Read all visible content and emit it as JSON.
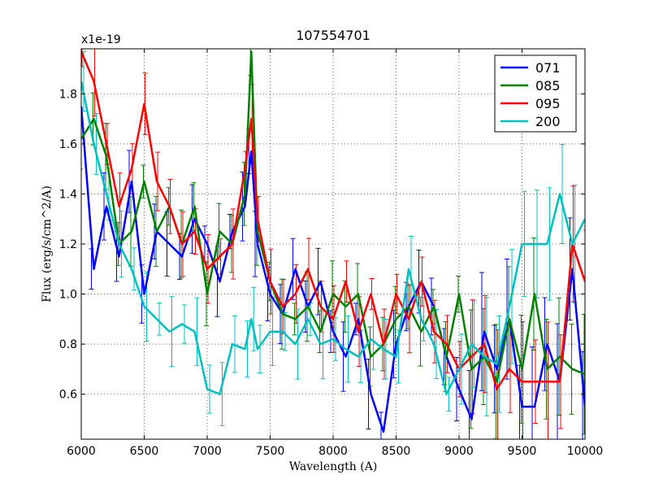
{
  "chart_data": {
    "type": "line",
    "title": "107554701",
    "xlabel": "Wavelength (A)",
    "ylabel": "Flux (erg/s/cm^2/A)",
    "y_multiplier_label": "x1e-19",
    "xlim": [
      6000,
      10000
    ],
    "ylim": [
      0.42,
      1.98
    ],
    "x_ticks": [
      6000,
      6500,
      7000,
      7500,
      8000,
      8500,
      9000,
      9500,
      10000
    ],
    "y_ticks": [
      0.6,
      0.8,
      1.0,
      1.2,
      1.4,
      1.6,
      1.8
    ],
    "x_tick_labels": [
      "6000",
      "6500",
      "7000",
      "7500",
      "8000",
      "8500",
      "9000",
      "9500",
      "10000"
    ],
    "y_tick_labels": [
      "0.6",
      "0.8",
      "1.0",
      "1.2",
      "1.4",
      "1.6",
      "1.8"
    ],
    "grid": true,
    "legend_position": "top-right",
    "series": [
      {
        "name": "071",
        "color": "#0000ff",
        "x": [
          6000,
          6100,
          6200,
          6300,
          6400,
          6500,
          6600,
          6700,
          6800,
          6900,
          7000,
          7100,
          7200,
          7300,
          7350,
          7400,
          7500,
          7600,
          7700,
          7800,
          7900,
          8000,
          8100,
          8200,
          8300,
          8400,
          8500,
          8600,
          8700,
          8800,
          8900,
          9000,
          9100,
          9200,
          9300,
          9400,
          9500,
          9600,
          9700,
          9800,
          9900,
          10000
        ],
        "values": [
          1.75,
          1.1,
          1.35,
          1.15,
          1.45,
          1.0,
          1.25,
          1.2,
          1.15,
          1.3,
          1.2,
          1.05,
          1.25,
          1.35,
          1.57,
          1.2,
          1.0,
          0.92,
          1.1,
          0.95,
          1.05,
          0.85,
          0.75,
          0.9,
          0.6,
          0.45,
          0.8,
          0.95,
          1.05,
          0.95,
          0.75,
          0.62,
          0.5,
          0.85,
          0.7,
          0.9,
          0.55,
          0.55,
          0.8,
          0.65,
          1.1,
          0.55
        ]
      },
      {
        "name": "085",
        "color": "#008000",
        "x": [
          6000,
          6100,
          6200,
          6300,
          6400,
          6500,
          6600,
          6700,
          6800,
          6900,
          7000,
          7100,
          7200,
          7300,
          7350,
          7400,
          7500,
          7600,
          7700,
          7800,
          7900,
          8000,
          8100,
          8200,
          8300,
          8400,
          8500,
          8600,
          8700,
          8800,
          8900,
          9000,
          9100,
          9200,
          9300,
          9400,
          9500,
          9600,
          9700,
          9800,
          9900,
          10000
        ],
        "values": [
          1.62,
          1.7,
          1.55,
          1.2,
          1.25,
          1.45,
          1.25,
          1.35,
          1.2,
          1.35,
          1.0,
          1.25,
          1.2,
          1.4,
          1.97,
          1.25,
          1.05,
          0.92,
          0.9,
          0.95,
          0.85,
          1.0,
          0.95,
          1.0,
          0.75,
          0.8,
          0.9,
          0.95,
          0.85,
          0.95,
          0.75,
          1.0,
          0.7,
          0.75,
          0.65,
          0.9,
          0.7,
          1.0,
          0.7,
          0.75,
          0.7,
          0.68
        ]
      },
      {
        "name": "095",
        "color": "#ff0000",
        "x": [
          6000,
          6100,
          6200,
          6300,
          6400,
          6500,
          6600,
          6700,
          6800,
          6900,
          7000,
          7100,
          7200,
          7300,
          7350,
          7400,
          7500,
          7600,
          7700,
          7800,
          7900,
          8000,
          8100,
          8200,
          8300,
          8400,
          8500,
          8600,
          8700,
          8800,
          8900,
          9000,
          9100,
          9200,
          9300,
          9400,
          9500,
          9600,
          9700,
          9800,
          9900,
          10000
        ],
        "values": [
          1.97,
          1.85,
          1.6,
          1.35,
          1.5,
          1.76,
          1.45,
          1.35,
          1.2,
          1.25,
          1.1,
          1.15,
          1.2,
          1.5,
          1.7,
          1.3,
          1.05,
          0.95,
          1.0,
          1.1,
          0.95,
          0.9,
          1.05,
          0.85,
          1.0,
          0.8,
          1.0,
          0.9,
          1.05,
          0.85,
          0.8,
          0.7,
          0.75,
          0.8,
          0.62,
          0.7,
          0.65,
          0.65,
          0.65,
          0.65,
          1.2,
          1.05
        ]
      },
      {
        "name": "200",
        "color": "#00bfbf",
        "x": [
          6000,
          6100,
          6200,
          6300,
          6400,
          6500,
          6600,
          6700,
          6800,
          6900,
          7000,
          7100,
          7200,
          7300,
          7350,
          7400,
          7500,
          7600,
          7700,
          7800,
          7900,
          8000,
          8100,
          8200,
          8300,
          8400,
          8500,
          8600,
          8700,
          8800,
          8900,
          9000,
          9100,
          9200,
          9300,
          9400,
          9500,
          9600,
          9700,
          9800,
          9900,
          10000
        ],
        "values": [
          1.85,
          1.6,
          1.4,
          1.2,
          1.1,
          0.95,
          0.9,
          0.85,
          0.88,
          0.85,
          0.62,
          0.6,
          0.8,
          0.78,
          0.9,
          0.78,
          0.85,
          0.85,
          0.8,
          0.9,
          0.8,
          0.82,
          0.78,
          0.75,
          0.82,
          0.78,
          0.75,
          1.1,
          0.9,
          0.8,
          0.6,
          0.7,
          0.8,
          0.75,
          0.72,
          0.95,
          1.2,
          1.2,
          1.2,
          1.4,
          1.2,
          1.3
        ]
      }
    ]
  }
}
